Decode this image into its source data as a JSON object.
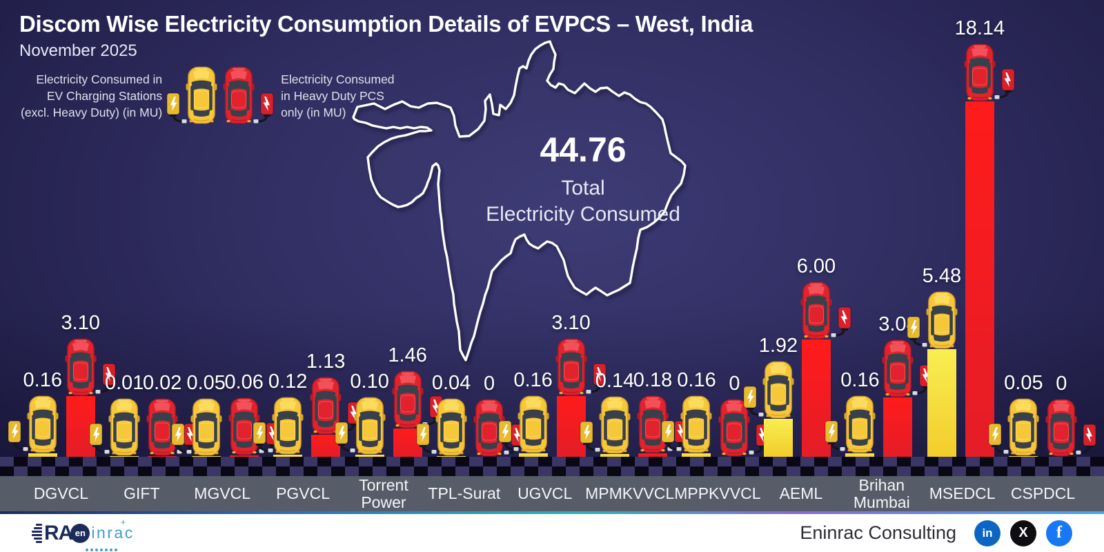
{
  "header": {
    "title": "Discom Wise Electricity Consumption Details of EVPCS – West, India",
    "subtitle": "November 2025"
  },
  "legend": {
    "left_label": "Electricity Consumed in\nEV Charging Stations\n(excl. Heavy Duty) (in MU)",
    "right_label": "Electricity Consumed\nin Heavy Duty PCS\nonly (in MU)"
  },
  "total": {
    "value": "44.76",
    "label": "Total\nElectricity Consumed"
  },
  "chart_data": {
    "type": "bar",
    "title": "Discom Wise Electricity Consumption Details of EVPCS – West, India",
    "subtitle": "November 2025",
    "unit": "MU",
    "total": 44.76,
    "ylim": [
      0,
      18.14
    ],
    "legend_position": "top-left",
    "categories": [
      "DGVCL",
      "GIFT",
      "MGVCL",
      "PGVCL",
      "Torrent Power",
      "TPL-Surat",
      "UGVCL",
      "MPMKVVCL",
      "MPPKVVCL",
      "AEML",
      "Brihan Mumbai",
      "MSEDCL",
      "CSPDCL"
    ],
    "series": [
      {
        "name": "Electricity Consumed in EV Charging Stations (excl. Heavy Duty) (in MU)",
        "color": "#f6c738",
        "values": [
          0.16,
          0.01,
          0.05,
          0.12,
          0.1,
          0.04,
          0.16,
          0.14,
          0.16,
          1.92,
          0.16,
          5.48,
          0.05
        ],
        "labels": [
          "0.16",
          "0.01",
          "0.05",
          "0.12",
          "0.10",
          "0.04",
          "0.16",
          "0.14",
          "0.16",
          "1.92",
          "0.16",
          "5.48",
          "0.05"
        ]
      },
      {
        "name": "Electricity Consumed in Heavy Duty PCS only (in MU)",
        "color": "#e2232e",
        "values": [
          3.1,
          0.02,
          0.06,
          1.13,
          1.46,
          0,
          3.1,
          0.18,
          0,
          6.0,
          3.04,
          18.14,
          0
        ],
        "labels": [
          "3.10",
          "0.02",
          "0.06",
          "1.13",
          "1.46",
          "0",
          "3.10",
          "0.18",
          "0",
          "6.00",
          "3.04",
          "18.14",
          "0"
        ]
      }
    ]
  },
  "footer": {
    "brand": "Eninrac Consulting",
    "logo": {
      "ra": "RA",
      "en": "en",
      "inrac": "inrac",
      "plus": "+"
    },
    "social": [
      "linkedin-icon",
      "x-icon",
      "facebook-icon"
    ],
    "social_glyphs": {
      "linkedin": "in",
      "x": "X",
      "facebook": "f"
    }
  },
  "colors": {
    "background": "#312f63",
    "bar_yellow_top": "#f8ee52",
    "bar_yellow_bottom": "#f3cd2b",
    "bar_red_top": "#ff1b1b",
    "bar_red_bottom": "#e41d27",
    "label_band": "#575d68",
    "linkedin": "#0a66c2",
    "x": "#0d0d12",
    "facebook": "#1877f2"
  }
}
